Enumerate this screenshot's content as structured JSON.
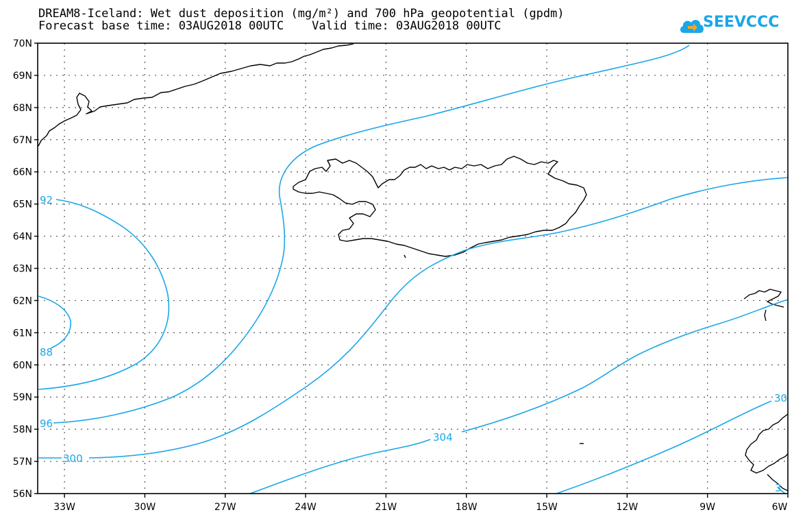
{
  "title_line1": "DREAM8-Iceland: Wet dust deposition (mg/m²) and 700 hPa geopotential (gpdm)",
  "title_line2": "Forecast base time: 03AUG2018 00UTC    Valid time: 03AUG2018 00UTC",
  "logo_text": "SEEVCCC",
  "colors": {
    "contour": "#1aa6e8",
    "coast": "#000000",
    "grid": "#555555",
    "background": "#ffffff"
  },
  "map": {
    "projection": "lat-lon",
    "lon_range": [
      -34.0,
      -6.0
    ],
    "lat_range": [
      56.0,
      70.0
    ],
    "lon_ticks": [
      {
        "value": -33,
        "label": "33W"
      },
      {
        "value": -30,
        "label": "30W"
      },
      {
        "value": -27,
        "label": "27W"
      },
      {
        "value": -24,
        "label": "24W"
      },
      {
        "value": -21,
        "label": "21W"
      },
      {
        "value": -18,
        "label": "18W"
      },
      {
        "value": -15,
        "label": "15W"
      },
      {
        "value": -12,
        "label": "12W"
      },
      {
        "value": -9,
        "label": "9W"
      },
      {
        "value": -6,
        "label": "6W"
      }
    ],
    "lat_ticks": [
      {
        "value": 70,
        "label": "70N"
      },
      {
        "value": 69,
        "label": "69N"
      },
      {
        "value": 68,
        "label": "68N"
      },
      {
        "value": 67,
        "label": "67N"
      },
      {
        "value": 66,
        "label": "66N"
      },
      {
        "value": 65,
        "label": "65N"
      },
      {
        "value": 64,
        "label": "64N"
      },
      {
        "value": 63,
        "label": "63N"
      },
      {
        "value": 62,
        "label": "62N"
      },
      {
        "value": 61,
        "label": "61N"
      },
      {
        "value": 60,
        "label": "60N"
      },
      {
        "value": 59,
        "label": "59N"
      },
      {
        "value": 58,
        "label": "58N"
      },
      {
        "value": 57,
        "label": "57N"
      },
      {
        "value": 56,
        "label": "56N"
      }
    ],
    "grid": "dotted",
    "contour_labels": [
      "92",
      "88",
      "96",
      "300",
      "304",
      "30",
      "3"
    ]
  }
}
